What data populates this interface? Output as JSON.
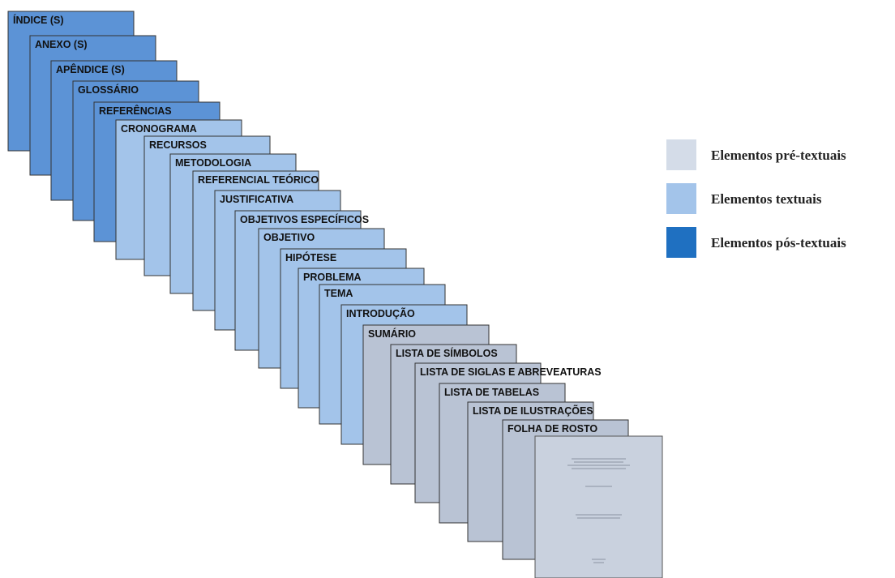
{
  "groups": [
    {
      "label": "Elementos pré-textuais",
      "color": "#b9c3d4",
      "pages": [
        "SUMÁRIO",
        "LISTA DE SÍMBOLOS",
        "LISTA DE SIGLAS E ABREVEATURAS",
        "LISTA DE TABELAS",
        "LISTA DE ILUSTRAÇÕES",
        "FOLHA DE ROSTO"
      ]
    },
    {
      "label": "Elementos textuais",
      "color": "#a3c4ea",
      "pages": [
        "CRONOGRAMA",
        "RECURSOS",
        "METODOLOGIA",
        "REFERENCIAL TEÓRICO",
        "JUSTIFICATIVA",
        "OBJETIVOS ESPECÍFICOS",
        "OBJETIVO",
        "HIPÓTESE",
        "PROBLEMA",
        "TEMA",
        "INTRODUÇÃO"
      ]
    },
    {
      "label": "Elementos pós-textuais",
      "color": "#5c93d6",
      "pages": [
        "ÍNDICE (S)",
        "ANEXO (S)",
        "APÊNDICE (S)",
        "GLOSSÁRIO",
        "REFERÊNCIAS"
      ]
    }
  ]
}
